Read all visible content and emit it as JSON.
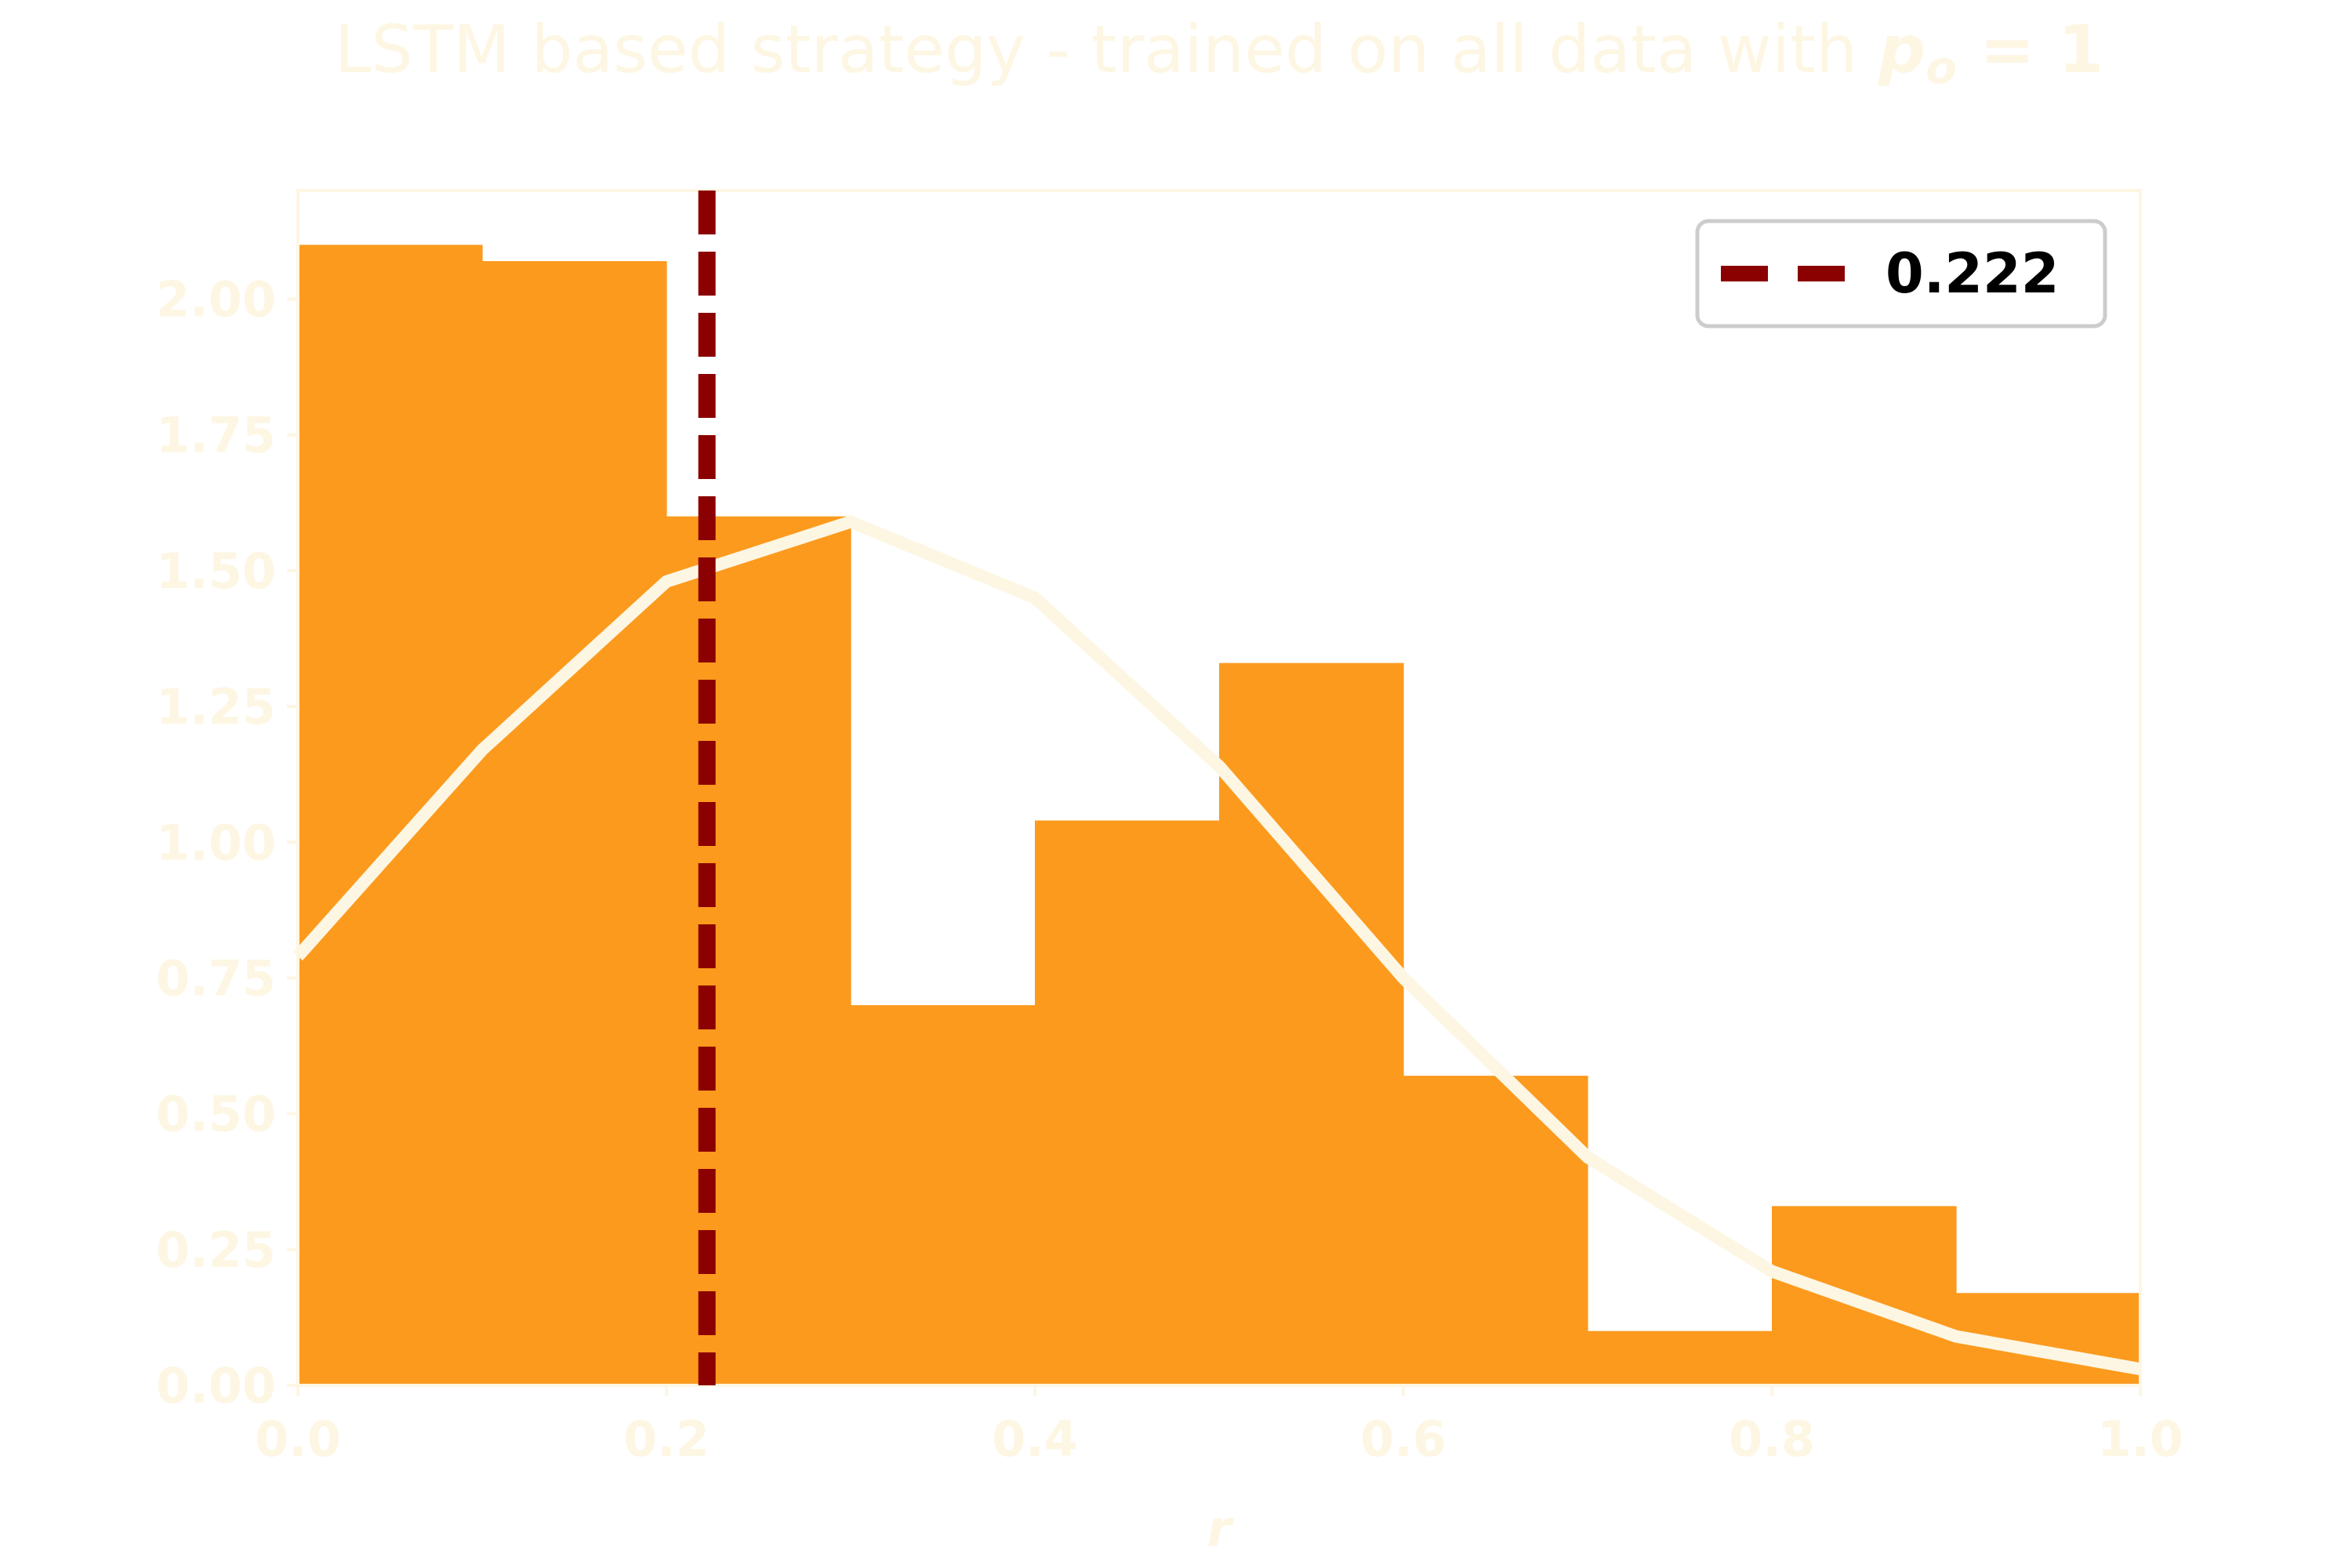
{
  "chart_data": {
    "type": "bar",
    "title": "LSTM based strategy - trained on all data with ",
    "title_math": "p",
    "title_math_sub": "o",
    "title_math_rest": " = 1",
    "xlabel": "r",
    "ylabel": "",
    "xlim": [
      0.0,
      1.0
    ],
    "ylim": [
      0.0,
      2.2
    ],
    "x_ticks": [
      "0.0",
      "0.2",
      "0.4",
      "0.6",
      "0.8",
      "1.0"
    ],
    "y_ticks": [
      "0.00",
      "0.25",
      "0.50",
      "0.75",
      "1.00",
      "1.25",
      "1.50",
      "1.75",
      "2.00"
    ],
    "histogram": {
      "bin_edges": [
        0.0,
        0.1,
        0.2,
        0.3,
        0.4,
        0.5,
        0.6,
        0.7,
        0.8,
        0.9,
        1.0
      ],
      "values": [
        2.1,
        2.07,
        1.6,
        0.7,
        1.04,
        1.33,
        0.57,
        0.1,
        0.33,
        0.17
      ],
      "color": "#fc9a1e"
    },
    "density_curve": {
      "x": [
        0.0,
        0.1,
        0.2,
        0.3,
        0.4,
        0.5,
        0.6,
        0.7,
        0.8,
        0.9,
        1.0
      ],
      "y": [
        0.79,
        1.17,
        1.48,
        1.59,
        1.45,
        1.14,
        0.75,
        0.42,
        0.21,
        0.09,
        0.03
      ],
      "color": "#fdf6e3"
    },
    "vline": {
      "x": 0.222,
      "label": "0.222",
      "color": "#8b0000",
      "style": "dashed"
    },
    "legend": {
      "position": "top-right",
      "entries": [
        "0.222"
      ]
    },
    "text_color": "#fdf6e3",
    "grid": false
  }
}
